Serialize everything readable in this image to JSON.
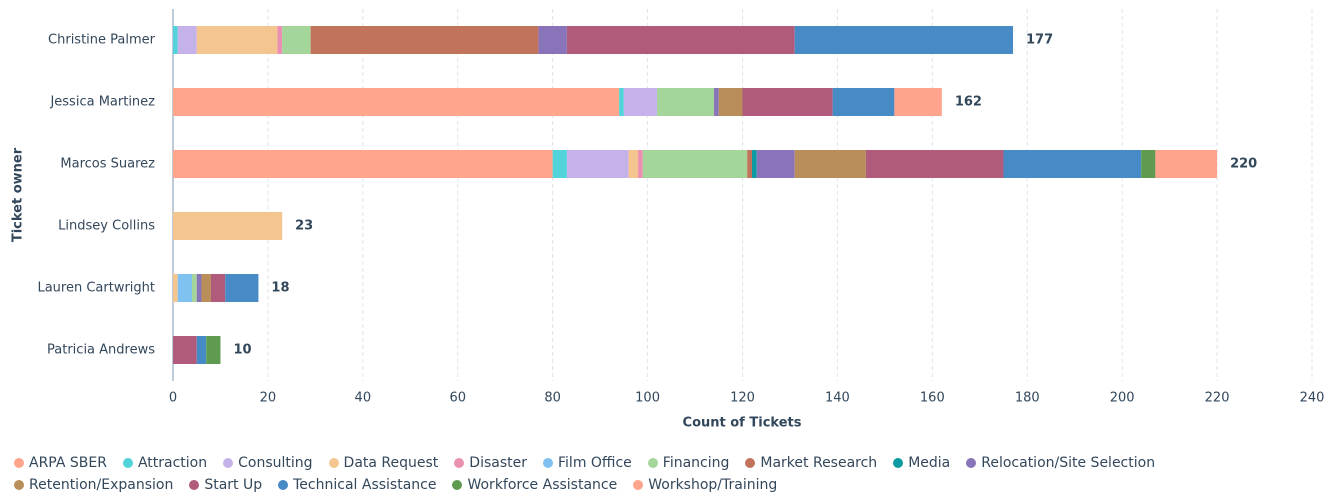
{
  "chart_data": {
    "type": "stacked-bar-horizontal",
    "categories": [
      "Christine Palmer",
      "Jessica Martinez",
      "Marcos Suarez",
      "Lindsey Collins",
      "Lauren Cartwright",
      "Patricia Andrews"
    ],
    "totals": [
      177,
      162,
      220,
      23,
      18,
      10
    ],
    "ylabel": "Ticket owner",
    "xlabel": "Count of Tickets",
    "xlim": [
      0,
      240
    ],
    "xticks": [
      0,
      20,
      40,
      60,
      80,
      100,
      120,
      140,
      160,
      180,
      200,
      220,
      240
    ],
    "grid": true,
    "series": [
      {
        "name": "ARPA SBER",
        "color": "#ffa58c",
        "values": [
          0,
          94,
          80,
          0,
          0,
          0
        ]
      },
      {
        "name": "Attraction",
        "color": "#51d3d9",
        "values": [
          1,
          1,
          3,
          0,
          0,
          0
        ]
      },
      {
        "name": "Consulting",
        "color": "#c5b2ea",
        "values": [
          4,
          7,
          13,
          0,
          0,
          0
        ]
      },
      {
        "name": "Data Request",
        "color": "#f5c590",
        "values": [
          17,
          0,
          2,
          23,
          1,
          0
        ]
      },
      {
        "name": "Disaster",
        "color": "#ea90b1",
        "values": [
          1,
          0,
          1,
          0,
          0,
          0
        ]
      },
      {
        "name": "Film Office",
        "color": "#7fc1f0",
        "values": [
          0,
          0,
          0,
          0,
          3,
          0
        ]
      },
      {
        "name": "Financing",
        "color": "#a4d59b",
        "values": [
          6,
          12,
          22,
          0,
          1,
          0
        ]
      },
      {
        "name": "Market Research",
        "color": "#c2735b",
        "values": [
          48,
          0,
          1,
          0,
          0,
          0
        ]
      },
      {
        "name": "Media",
        "color": "#0c9ba3",
        "values": [
          0,
          0,
          1,
          0,
          0,
          0
        ]
      },
      {
        "name": "Relocation/Site Selection",
        "color": "#8a74b9",
        "values": [
          6,
          1,
          8,
          0,
          1,
          0
        ]
      },
      {
        "name": "Retention/Expansion",
        "color": "#b98e5a",
        "values": [
          0,
          5,
          15,
          0,
          2,
          0
        ]
      },
      {
        "name": "Start Up",
        "color": "#b05b7b",
        "values": [
          48,
          19,
          29,
          0,
          3,
          5
        ]
      },
      {
        "name": "Technical Assistance",
        "color": "#468ac6",
        "values": [
          46,
          13,
          29,
          0,
          7,
          2
        ]
      },
      {
        "name": "Workforce Assistance",
        "color": "#5e9b50",
        "values": [
          0,
          0,
          3,
          0,
          0,
          3
        ]
      },
      {
        "name": "Workshop/Training",
        "color": "#fea38c",
        "values": [
          0,
          10,
          13,
          0,
          0,
          0
        ]
      }
    ]
  }
}
